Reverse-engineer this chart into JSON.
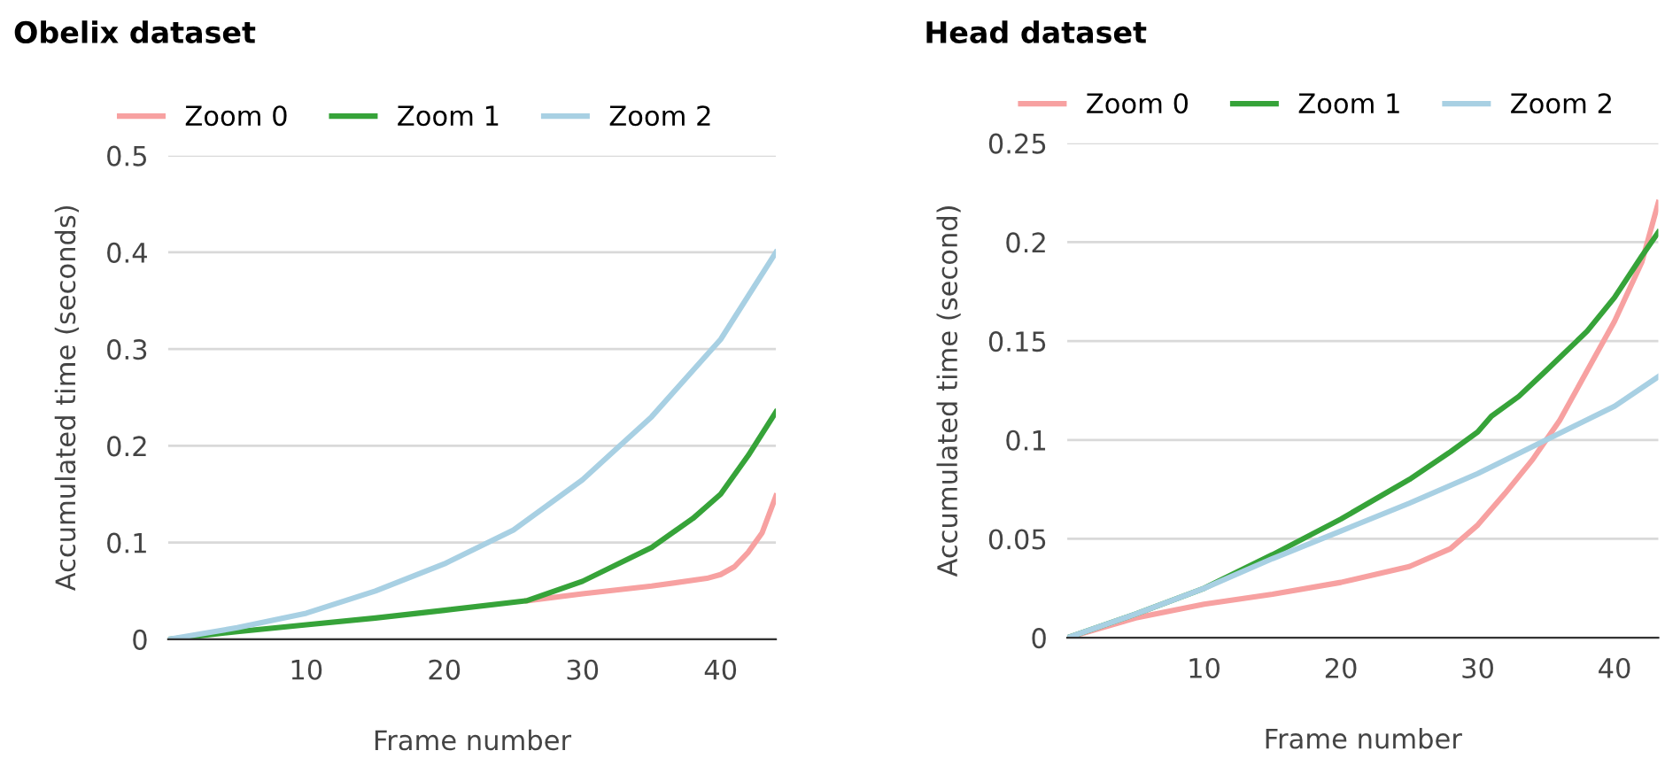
{
  "chart_data": [
    {
      "type": "line",
      "title": "Obelix dataset",
      "xlabel": "Frame number",
      "ylabel": "Accumulated time (seconds)",
      "xlim": [
        0,
        44
      ],
      "xticks": [
        10,
        20,
        30,
        40
      ],
      "ylim": [
        0,
        0.5
      ],
      "yticks": [
        0,
        0.1,
        0.2,
        0.3,
        0.4,
        0.5
      ],
      "grid": "y",
      "legend": "top left",
      "marker": "none",
      "line_style": "solid",
      "series": [
        {
          "name": "Zoom 0",
          "color": "#f7a1a1",
          "x": [
            26,
            30,
            35,
            39,
            40,
            41,
            42,
            43,
            44
          ],
          "values": [
            0.04,
            0.047,
            0.055,
            0.063,
            0.067,
            0.075,
            0.09,
            0.11,
            0.148
          ]
        },
        {
          "name": "Zoom 1",
          "color": "#36a339",
          "x": [
            0,
            5,
            10,
            15,
            20,
            26,
            30,
            35,
            38,
            40,
            42,
            44
          ],
          "values": [
            0,
            0.008,
            0.015,
            0.022,
            0.03,
            0.04,
            0.06,
            0.095,
            0.125,
            0.15,
            0.19,
            0.235
          ]
        },
        {
          "name": "Zoom 2",
          "color": "#a8d0e3",
          "x": [
            0,
            5,
            10,
            15,
            20,
            25,
            30,
            35,
            40,
            44
          ],
          "values": [
            0,
            0.012,
            0.027,
            0.05,
            0.078,
            0.113,
            0.165,
            0.23,
            0.31,
            0.4
          ]
        }
      ]
    },
    {
      "type": "line",
      "title": "Head dataset",
      "xlabel": "Frame number",
      "ylabel": "Accumulated time (second)",
      "xlim": [
        0,
        43.2
      ],
      "xticks": [
        10,
        20,
        30,
        40
      ],
      "ylim": [
        0,
        0.25
      ],
      "yticks": [
        0,
        0.05,
        0.1,
        0.15,
        0.2,
        0.25
      ],
      "grid": "y",
      "legend": "top left",
      "marker": "none",
      "line_style": "solid",
      "series": [
        {
          "name": "Zoom 0",
          "color": "#f7a1a1",
          "x": [
            0,
            5,
            10,
            15,
            20,
            25,
            28,
            30,
            32,
            34,
            36,
            38,
            40,
            42,
            43.2
          ],
          "values": [
            0,
            0.01,
            0.017,
            0.022,
            0.028,
            0.036,
            0.045,
            0.057,
            0.073,
            0.09,
            0.11,
            0.135,
            0.16,
            0.19,
            0.22
          ]
        },
        {
          "name": "Zoom 1",
          "color": "#36a339",
          "x": [
            0,
            5,
            10,
            15,
            20,
            25,
            28,
            30,
            31,
            33,
            35,
            38,
            40,
            42,
            43.2
          ],
          "values": [
            0,
            0.012,
            0.025,
            0.042,
            0.06,
            0.08,
            0.094,
            0.104,
            0.112,
            0.122,
            0.135,
            0.155,
            0.172,
            0.193,
            0.205
          ]
        },
        {
          "name": "Zoom 2",
          "color": "#a8d0e3",
          "x": [
            0,
            5,
            10,
            15,
            20,
            25,
            30,
            35,
            40,
            43.2
          ],
          "values": [
            0,
            0.012,
            0.025,
            0.04,
            0.054,
            0.068,
            0.083,
            0.1,
            0.117,
            0.132
          ]
        }
      ]
    }
  ]
}
